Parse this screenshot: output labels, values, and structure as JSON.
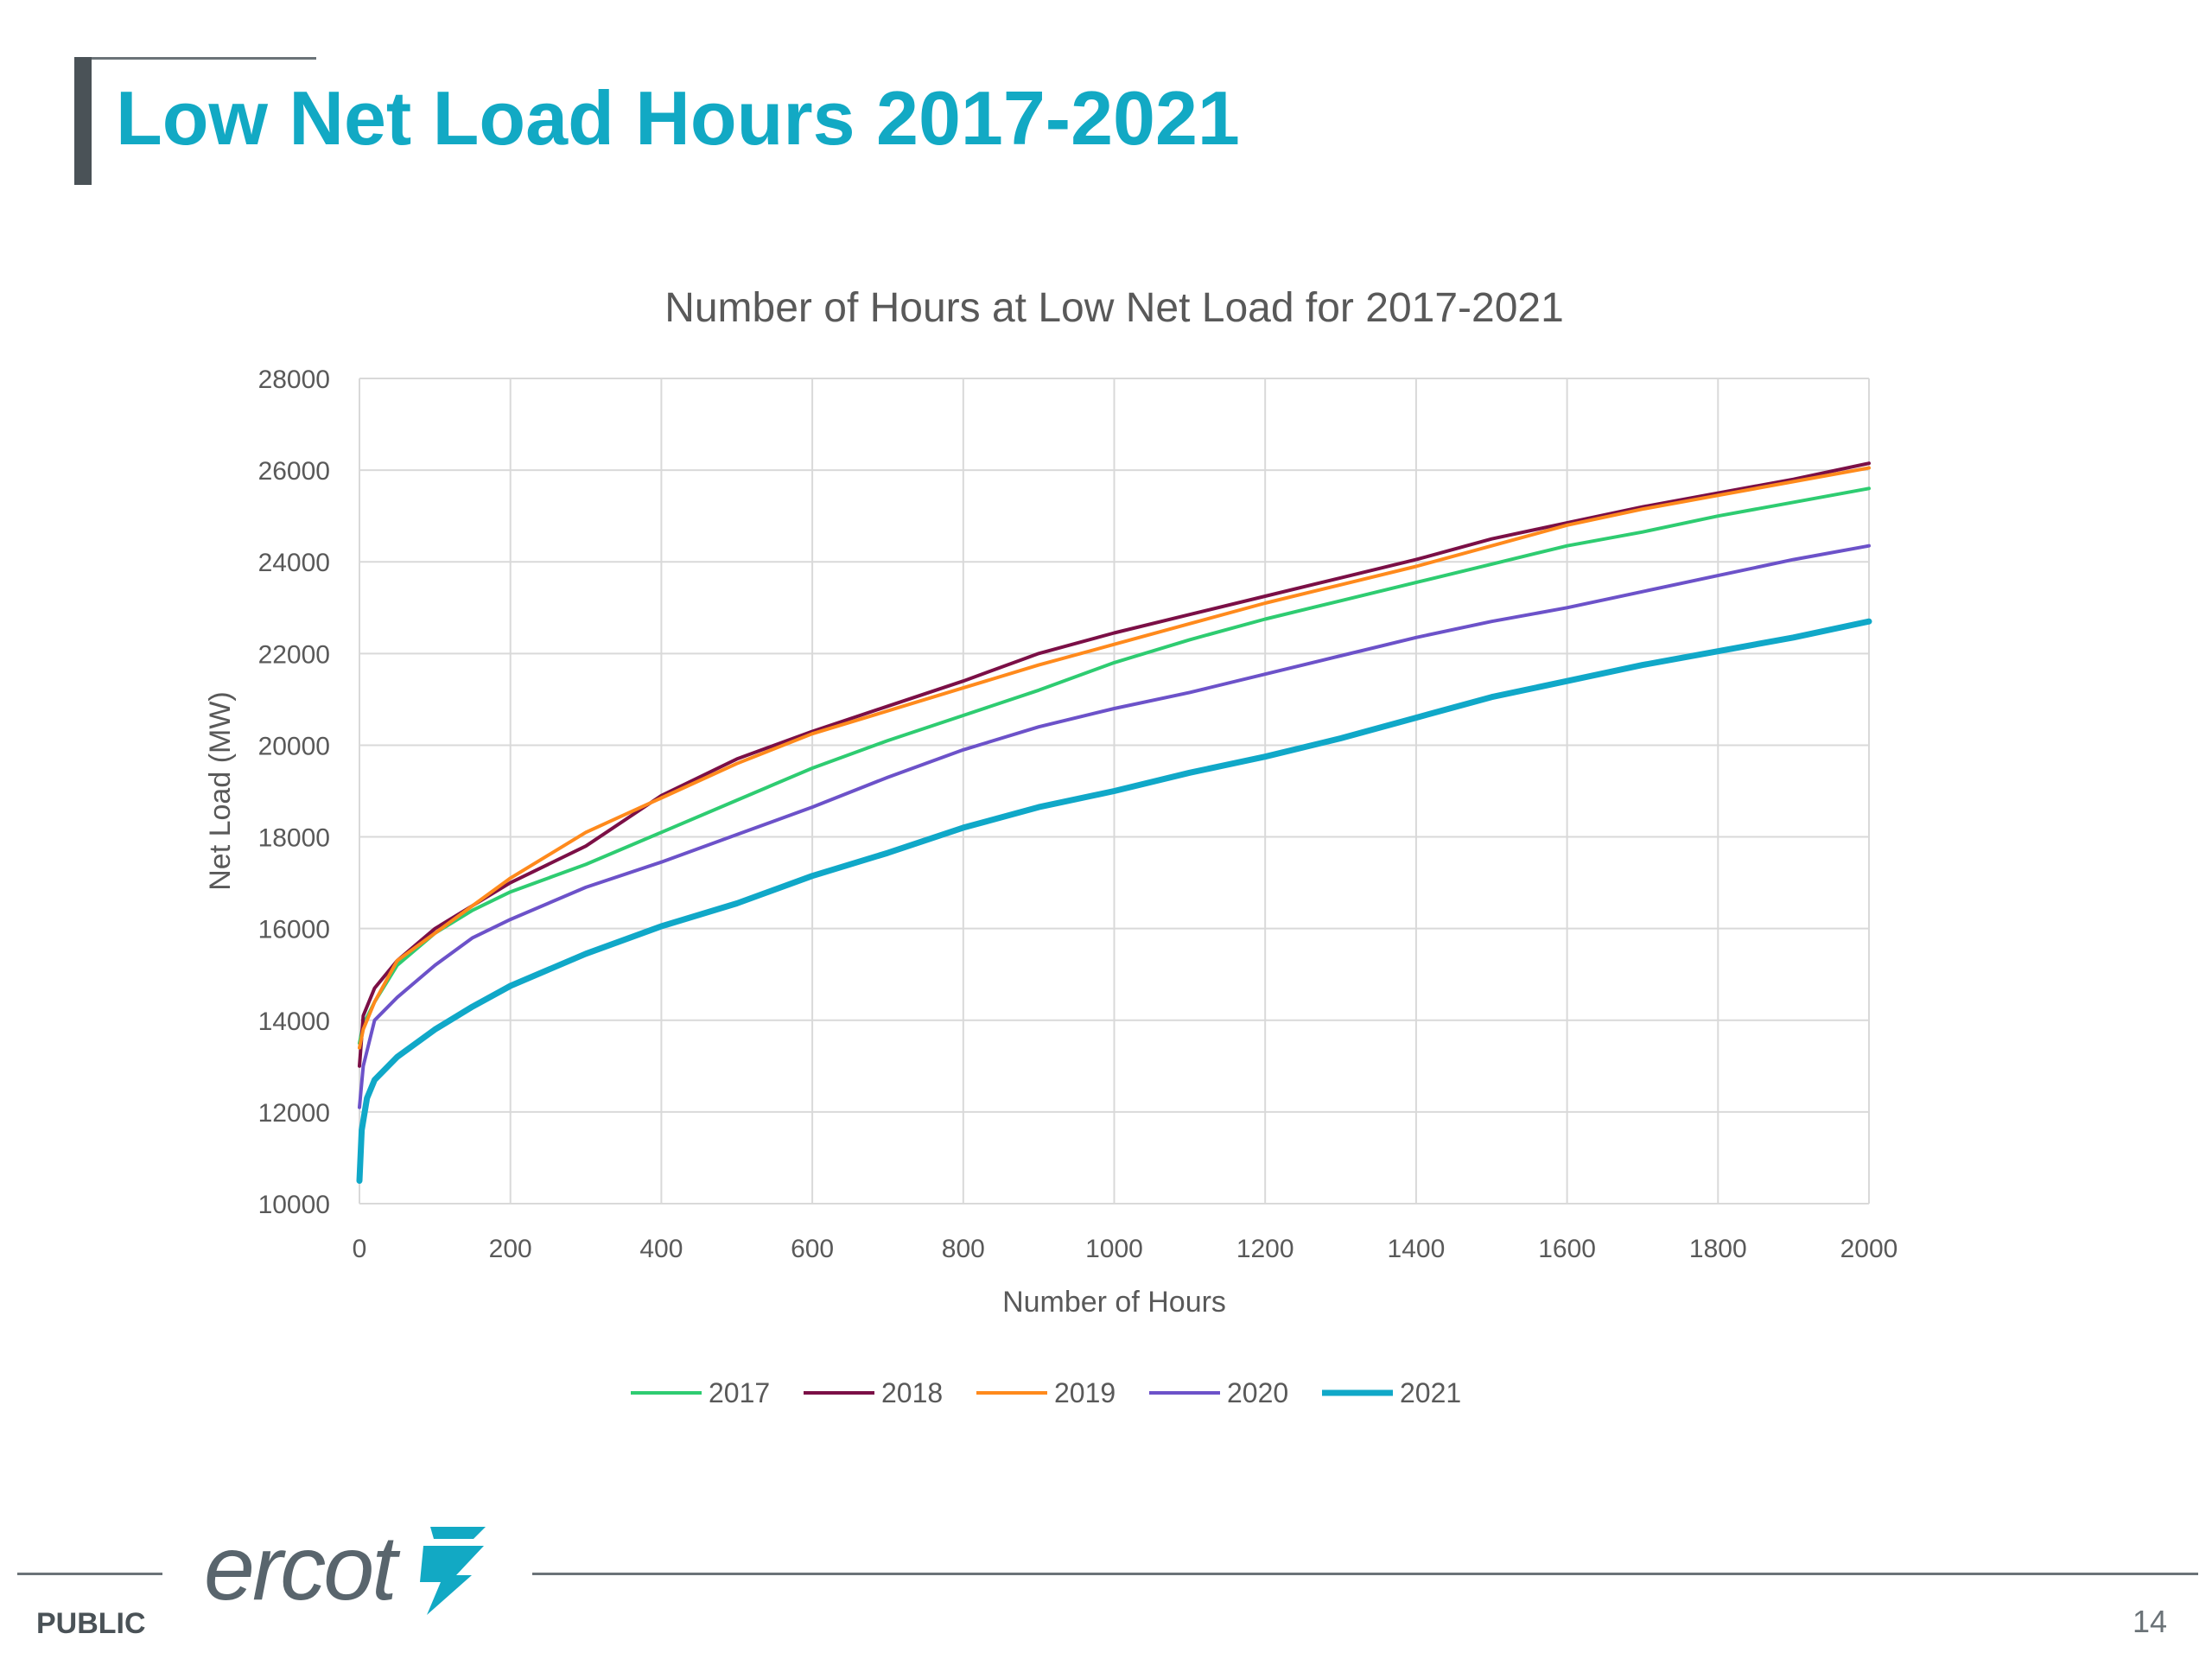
{
  "slide": {
    "title": "Low Net Load Hours 2017-2021",
    "classification": "PUBLIC",
    "page_number": "14",
    "logo_text": "ercot"
  },
  "colors": {
    "title": "#12a9c4",
    "2017": "#2ecc71",
    "2018": "#7b0f46",
    "2019": "#ff8a1c",
    "2020": "#6c52c9",
    "2021": "#10a8c8",
    "grid": "#d9d9d9",
    "axis_text": "#595959"
  },
  "chart_data": {
    "type": "line",
    "title": "Number of Hours at Low Net Load for 2017-2021",
    "xlabel": "Number of Hours",
    "ylabel": "Net Load (MW)",
    "xlim": [
      0,
      2000
    ],
    "ylim": [
      10000,
      28000
    ],
    "xticks": [
      0,
      200,
      400,
      600,
      800,
      1000,
      1200,
      1400,
      1600,
      1800,
      2000
    ],
    "yticks": [
      10000,
      12000,
      14000,
      16000,
      18000,
      20000,
      22000,
      24000,
      26000,
      28000
    ],
    "grid": true,
    "legend_position": "bottom",
    "series": [
      {
        "name": "2017",
        "x": [
          0,
          5,
          20,
          50,
          100,
          150,
          200,
          300,
          400,
          500,
          600,
          700,
          800,
          900,
          1000,
          1100,
          1200,
          1300,
          1400,
          1500,
          1600,
          1700,
          1800,
          1900,
          2000
        ],
        "y": [
          13500,
          13900,
          14400,
          15200,
          15900,
          16400,
          16800,
          17400,
          18100,
          18800,
          19500,
          20100,
          20650,
          21200,
          21800,
          22300,
          22750,
          23150,
          23550,
          23950,
          24350,
          24650,
          25000,
          25300,
          25600
        ]
      },
      {
        "name": "2018",
        "x": [
          0,
          5,
          20,
          50,
          100,
          150,
          200,
          300,
          400,
          500,
          600,
          700,
          800,
          900,
          1000,
          1100,
          1200,
          1300,
          1400,
          1500,
          1600,
          1700,
          1800,
          1900,
          2000
        ],
        "y": [
          13000,
          14100,
          14700,
          15300,
          16000,
          16500,
          17000,
          17800,
          18900,
          19700,
          20300,
          20850,
          21400,
          22000,
          22450,
          22850,
          23250,
          23650,
          24050,
          24500,
          24850,
          25200,
          25500,
          25800,
          26150
        ]
      },
      {
        "name": "2019",
        "x": [
          0,
          5,
          20,
          50,
          100,
          150,
          200,
          300,
          400,
          500,
          600,
          700,
          800,
          900,
          1000,
          1100,
          1200,
          1300,
          1400,
          1500,
          1600,
          1700,
          1800,
          1900,
          2000
        ],
        "y": [
          13400,
          13800,
          14400,
          15300,
          15900,
          16500,
          17100,
          18100,
          18850,
          19600,
          20250,
          20750,
          21250,
          21750,
          22200,
          22650,
          23100,
          23500,
          23900,
          24350,
          24800,
          25150,
          25450,
          25750,
          26050
        ]
      },
      {
        "name": "2020",
        "x": [
          0,
          5,
          20,
          50,
          100,
          150,
          200,
          300,
          400,
          500,
          600,
          700,
          800,
          900,
          1000,
          1100,
          1200,
          1300,
          1400,
          1500,
          1600,
          1700,
          1800,
          1900,
          2000
        ],
        "y": [
          12100,
          13000,
          14000,
          14500,
          15200,
          15800,
          16200,
          16900,
          17450,
          18050,
          18650,
          19300,
          19900,
          20400,
          20800,
          21150,
          21550,
          21950,
          22350,
          22700,
          23000,
          23350,
          23700,
          24050,
          24350
        ]
      },
      {
        "name": "2021",
        "x": [
          0,
          3,
          10,
          20,
          50,
          100,
          150,
          200,
          300,
          400,
          500,
          600,
          700,
          800,
          900,
          1000,
          1100,
          1200,
          1300,
          1400,
          1500,
          1600,
          1700,
          1800,
          1900,
          2000
        ],
        "y": [
          10500,
          11600,
          12300,
          12700,
          13200,
          13800,
          14300,
          14750,
          15450,
          16050,
          16550,
          17150,
          17650,
          18200,
          18650,
          19000,
          19400,
          19750,
          20150,
          20600,
          21050,
          21400,
          21750,
          22050,
          22350,
          22700
        ]
      }
    ]
  }
}
